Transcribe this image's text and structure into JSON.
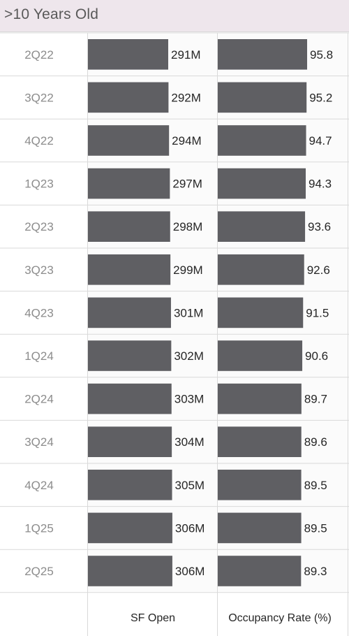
{
  "header": {
    "title": ">10 Years Old"
  },
  "colors": {
    "bar": "#5f5f63",
    "grid": "#d9d9d9",
    "header_bg": "#eee6ec"
  },
  "chart_data": {
    "type": "bar",
    "orientation": "horizontal",
    "categories": [
      "2Q22",
      "3Q22",
      "4Q22",
      "1Q23",
      "2Q23",
      "3Q23",
      "4Q23",
      "1Q24",
      "2Q24",
      "3Q24",
      "4Q24",
      "1Q25",
      "2Q25"
    ],
    "panels": [
      {
        "id": "sf-open",
        "title": "SF Open",
        "values": [
          291,
          292,
          294,
          297,
          298,
          299,
          301,
          302,
          303,
          304,
          305,
          306,
          306
        ],
        "labels": [
          "291M",
          "292M",
          "294M",
          "297M",
          "298M",
          "299M",
          "301M",
          "302M",
          "303M",
          "304M",
          "305M",
          "306M",
          "306M"
        ],
        "xlim": [
          0,
          360
        ]
      },
      {
        "id": "occupancy-rate",
        "title": "Occupancy Rate (%)",
        "values": [
          95.8,
          95.2,
          94.7,
          94.3,
          93.6,
          92.6,
          91.5,
          90.6,
          89.7,
          89.6,
          89.5,
          89.5,
          89.3
        ],
        "labels": [
          "95.8",
          "95.2",
          "94.7",
          "94.3",
          "93.6",
          "92.6",
          "91.5",
          "90.6",
          "89.7",
          "89.6",
          "89.5",
          "89.5",
          "89.3"
        ],
        "xlim": [
          0,
          103
        ]
      }
    ]
  }
}
